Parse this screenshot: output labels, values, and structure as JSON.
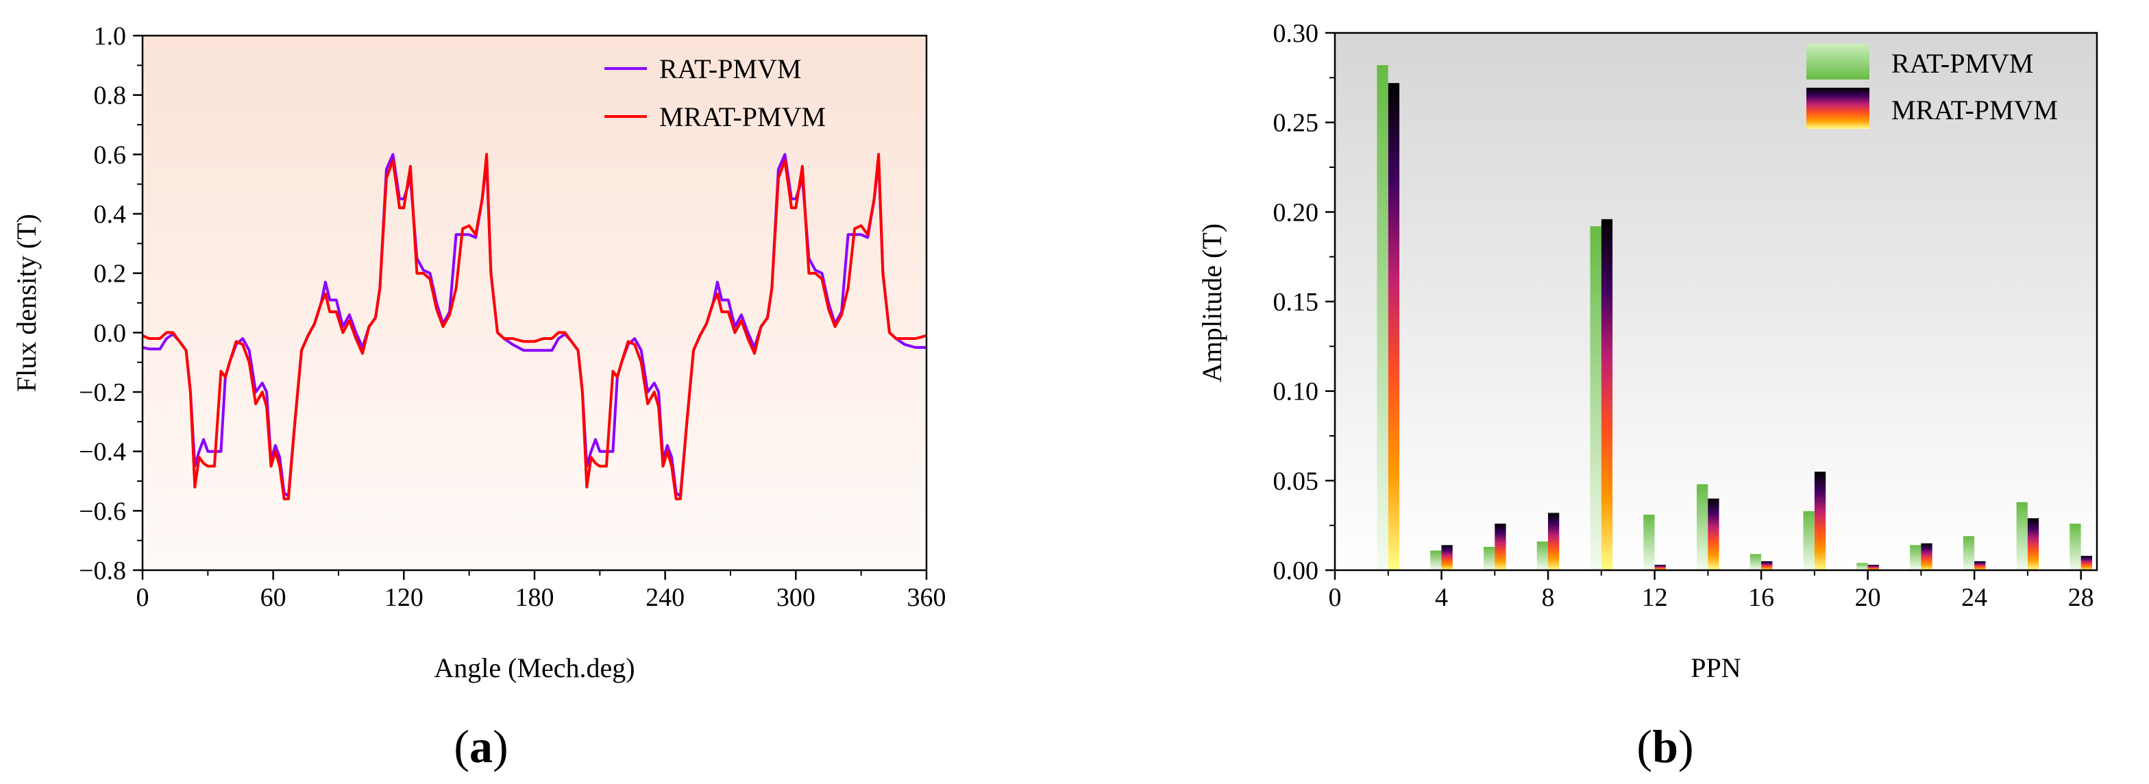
{
  "figure": {
    "panel_a_label": "a",
    "panel_b_label": "b",
    "open_paren": "(",
    "close_paren": ")"
  },
  "colors": {
    "rat_line": "#8a00ff",
    "mrat_line": "#ff0000",
    "panel_a_bg_top": "#fbe3d8",
    "panel_a_bg_bottom": "#fffaf7",
    "panel_b_bg_top": "#d6d6d6",
    "panel_b_bg_bottom": "#ffffff",
    "rat_bar_top": "#66bb44",
    "rat_bar_bottom": "#f4fbf0",
    "mrat_bar_stops": [
      "#000000",
      "#400060",
      "#c02070",
      "#ff5020",
      "#ff9a00",
      "#ffff88"
    ]
  },
  "chart_data": [
    {
      "type": "line",
      "title": "",
      "xlabel": "Angle (Mech.deg)",
      "ylabel": "Flux density (T)",
      "xlim": [
        0,
        360
      ],
      "ylim": [
        -0.8,
        1.0
      ],
      "xticks": [
        0,
        60,
        120,
        180,
        240,
        300,
        360
      ],
      "xtick_labels": [
        "0",
        "60",
        "120",
        "180",
        "240",
        "300",
        "360"
      ],
      "yticks": [
        -0.8,
        -0.6,
        -0.4,
        -0.2,
        0.0,
        0.2,
        0.4,
        0.6,
        0.8,
        1.0
      ],
      "ytick_labels": [
        "−0.8",
        "−0.6",
        "−0.4",
        "−0.2",
        "0.0",
        "0.2",
        "0.4",
        "0.6",
        "0.8",
        "1.0"
      ],
      "grid": false,
      "legend_position": "top-right",
      "series": [
        {
          "name": "RAT-PMVM",
          "x": [
            0,
            3,
            8,
            11,
            14,
            17,
            20,
            22,
            24,
            26,
            28,
            30,
            33,
            36,
            38,
            40,
            43,
            46,
            49,
            52,
            55,
            57,
            59,
            61,
            63,
            65,
            67,
            70,
            73,
            76,
            79,
            82,
            84,
            86,
            89,
            92,
            95,
            98,
            101,
            104,
            107,
            109,
            112,
            115,
            118,
            120,
            123,
            126,
            129,
            132,
            135,
            138,
            141,
            144,
            147,
            150,
            153,
            156,
            158,
            160,
            163,
            166,
            170,
            175,
            180,
            184,
            188,
            191,
            194,
            197,
            200,
            202,
            204,
            206,
            208,
            210,
            213,
            216,
            218,
            220,
            223,
            226,
            229,
            232,
            235,
            237,
            239,
            241,
            243,
            245,
            247,
            250,
            253,
            256,
            259,
            262,
            264,
            266,
            269,
            272,
            275,
            278,
            281,
            284,
            287,
            289,
            292,
            295,
            298,
            300,
            303,
            306,
            309,
            312,
            315,
            318,
            321,
            324,
            327,
            330,
            333,
            336,
            338,
            340,
            343,
            346,
            350,
            355,
            360
          ],
          "values": [
            -0.05,
            -0.055,
            -0.055,
            -0.02,
            -0.005,
            -0.03,
            -0.06,
            -0.2,
            -0.45,
            -0.4,
            -0.36,
            -0.4,
            -0.4,
            -0.4,
            -0.15,
            -0.1,
            -0.04,
            -0.02,
            -0.06,
            -0.2,
            -0.17,
            -0.2,
            -0.43,
            -0.38,
            -0.42,
            -0.54,
            -0.55,
            -0.3,
            -0.06,
            -0.01,
            0.03,
            0.1,
            0.17,
            0.11,
            0.11,
            0.02,
            0.06,
            0.0,
            -0.05,
            0.02,
            0.05,
            0.15,
            0.55,
            0.6,
            0.45,
            0.45,
            0.52,
            0.25,
            0.21,
            0.2,
            0.1,
            0.03,
            0.07,
            0.33,
            0.33,
            0.33,
            0.32,
            0.45,
            0.58,
            0.2,
            0.0,
            -0.02,
            -0.04,
            -0.06,
            -0.06,
            -0.06,
            -0.06,
            -0.02,
            -0.005,
            -0.03,
            -0.06,
            -0.2,
            -0.45,
            -0.4,
            -0.36,
            -0.4,
            -0.4,
            -0.4,
            -0.15,
            -0.1,
            -0.04,
            -0.02,
            -0.06,
            -0.2,
            -0.17,
            -0.2,
            -0.43,
            -0.38,
            -0.42,
            -0.54,
            -0.55,
            -0.3,
            -0.06,
            -0.01,
            0.03,
            0.1,
            0.17,
            0.11,
            0.11,
            0.02,
            0.06,
            0.0,
            -0.05,
            0.02,
            0.05,
            0.15,
            0.55,
            0.6,
            0.45,
            0.45,
            0.52,
            0.25,
            0.21,
            0.2,
            0.1,
            0.03,
            0.07,
            0.33,
            0.33,
            0.33,
            0.32,
            0.45,
            0.58,
            0.2,
            0.0,
            -0.02,
            -0.04,
            -0.05,
            -0.05
          ]
        },
        {
          "name": "MRAT-PMVM",
          "x": [
            0,
            3,
            8,
            11,
            14,
            17,
            20,
            22,
            24,
            26,
            28,
            30,
            33,
            36,
            38,
            40,
            43,
            46,
            49,
            52,
            55,
            57,
            59,
            61,
            63,
            65,
            67,
            70,
            73,
            76,
            79,
            82,
            84,
            86,
            89,
            92,
            95,
            98,
            101,
            104,
            107,
            109,
            112,
            115,
            118,
            120,
            123,
            126,
            129,
            132,
            135,
            138,
            141,
            144,
            147,
            150,
            153,
            156,
            158,
            160,
            163,
            166,
            170,
            175,
            180,
            184,
            188,
            191,
            194,
            197,
            200,
            202,
            204,
            206,
            208,
            210,
            213,
            216,
            218,
            220,
            223,
            226,
            229,
            232,
            235,
            237,
            239,
            241,
            243,
            245,
            247,
            250,
            253,
            256,
            259,
            262,
            264,
            266,
            269,
            272,
            275,
            278,
            281,
            284,
            287,
            289,
            292,
            295,
            298,
            300,
            303,
            306,
            309,
            312,
            315,
            318,
            321,
            324,
            327,
            330,
            333,
            336,
            338,
            340,
            343,
            346,
            350,
            355,
            360
          ],
          "values": [
            -0.01,
            -0.02,
            -0.02,
            0.0,
            0.0,
            -0.03,
            -0.06,
            -0.2,
            -0.52,
            -0.42,
            -0.44,
            -0.45,
            -0.45,
            -0.13,
            -0.15,
            -0.1,
            -0.03,
            -0.04,
            -0.1,
            -0.24,
            -0.2,
            -0.25,
            -0.45,
            -0.4,
            -0.45,
            -0.56,
            -0.56,
            -0.3,
            -0.06,
            -0.01,
            0.03,
            0.1,
            0.13,
            0.07,
            0.07,
            0.0,
            0.04,
            -0.02,
            -0.07,
            0.02,
            0.05,
            0.15,
            0.52,
            0.58,
            0.42,
            0.42,
            0.56,
            0.2,
            0.2,
            0.18,
            0.08,
            0.02,
            0.06,
            0.15,
            0.35,
            0.36,
            0.33,
            0.45,
            0.6,
            0.2,
            0.0,
            -0.02,
            -0.02,
            -0.03,
            -0.03,
            -0.02,
            -0.02,
            0.0,
            0.0,
            -0.03,
            -0.06,
            -0.2,
            -0.52,
            -0.42,
            -0.44,
            -0.45,
            -0.45,
            -0.13,
            -0.15,
            -0.1,
            -0.03,
            -0.04,
            -0.1,
            -0.24,
            -0.2,
            -0.25,
            -0.45,
            -0.4,
            -0.45,
            -0.56,
            -0.56,
            -0.3,
            -0.06,
            -0.01,
            0.03,
            0.1,
            0.13,
            0.07,
            0.07,
            0.0,
            0.04,
            -0.02,
            -0.07,
            0.02,
            0.05,
            0.15,
            0.52,
            0.58,
            0.42,
            0.42,
            0.56,
            0.2,
            0.2,
            0.18,
            0.08,
            0.02,
            0.06,
            0.15,
            0.35,
            0.36,
            0.33,
            0.45,
            0.6,
            0.2,
            0.0,
            -0.02,
            -0.02,
            -0.02,
            -0.01
          ]
        }
      ]
    },
    {
      "type": "bar",
      "title": "",
      "xlabel": "PPN",
      "ylabel": "Amplitude (T)",
      "xlim": [
        0,
        28.6
      ],
      "ylim": [
        0,
        0.3
      ],
      "xticks": [
        0,
        4,
        8,
        12,
        16,
        20,
        24,
        28
      ],
      "xtick_labels": [
        "0",
        "4",
        "8",
        "12",
        "16",
        "20",
        "24",
        "28"
      ],
      "yticks": [
        0.0,
        0.05,
        0.1,
        0.15,
        0.2,
        0.25,
        0.3
      ],
      "ytick_labels": [
        "0.00",
        "0.05",
        "0.10",
        "0.15",
        "0.20",
        "0.25",
        "0.30"
      ],
      "grid": false,
      "legend_position": "top-right",
      "categories": [
        2,
        4,
        6,
        8,
        10,
        12,
        14,
        16,
        18,
        20,
        22,
        24,
        26,
        28
      ],
      "series": [
        {
          "name": "RAT-PMVM",
          "values": [
            0.282,
            0.011,
            0.013,
            0.016,
            0.192,
            0.031,
            0.048,
            0.009,
            0.033,
            0.004,
            0.014,
            0.019,
            0.038,
            0.026
          ]
        },
        {
          "name": "MRAT-PMVM",
          "values": [
            0.272,
            0.014,
            0.026,
            0.032,
            0.196,
            0.003,
            0.04,
            0.005,
            0.055,
            0.003,
            0.015,
            0.005,
            0.029,
            0.008
          ]
        }
      ]
    }
  ]
}
